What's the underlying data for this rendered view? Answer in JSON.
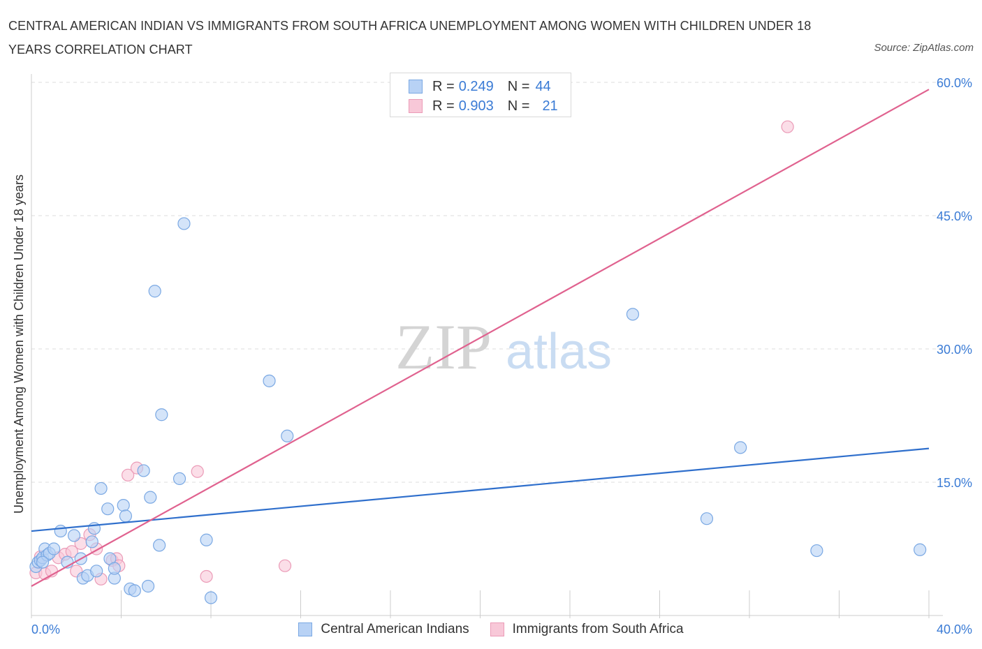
{
  "header": {
    "title": "CENTRAL AMERICAN INDIAN VS IMMIGRANTS FROM SOUTH AFRICA UNEMPLOYMENT AMONG WOMEN WITH CHILDREN UNDER 18 YEARS CORRELATION CHART",
    "source": "Source: ZipAtlas.com"
  },
  "legend": {
    "blue": {
      "r_label": "R =",
      "r_value": "0.249",
      "n_label": "N =",
      "n_value": "44"
    },
    "pink": {
      "r_label": "R =",
      "r_value": "0.903",
      "n_label": "N =",
      "n_value": "21"
    }
  },
  "watermark": {
    "zip": "ZIP",
    "atlas": "atlas"
  },
  "colors": {
    "blue_fill": "#b8d2f5",
    "blue_stroke": "#7aa8e3",
    "blue_line": "#2f6fcc",
    "pink_fill": "#f8c8d8",
    "pink_stroke": "#eb9bb7",
    "pink_line": "#e0628f",
    "tick_label": "#3a7bd5",
    "grid": "#dddddd"
  },
  "chart_data": {
    "type": "scatter",
    "title": "CENTRAL AMERICAN INDIAN VS IMMIGRANTS FROM SOUTH AFRICA UNEMPLOYMENT AMONG WOMEN WITH CHILDREN UNDER 18 YEARS CORRELATION CHART",
    "xlabel": "",
    "ylabel": "Unemployment Among Women with Children Under 18 years",
    "xlim": [
      0,
      40
    ],
    "ylim": [
      0,
      60
    ],
    "x_tick_labels": [
      "0.0%",
      "40.0%"
    ],
    "y_ticks": [
      15,
      30,
      45,
      60
    ],
    "y_tick_labels": [
      "15.0%",
      "30.0%",
      "45.0%",
      "60.0%"
    ],
    "grid": true,
    "series": [
      {
        "name": "Central American Indians",
        "color": "blue",
        "trend": {
          "x": [
            0,
            40
          ],
          "y": [
            9.5,
            18.8
          ]
        },
        "points": [
          [
            0.2,
            5.5
          ],
          [
            0.3,
            6.0
          ],
          [
            0.4,
            6.2
          ],
          [
            0.5,
            6.5
          ],
          [
            0.6,
            7.5
          ],
          [
            0.7,
            6.8
          ],
          [
            0.8,
            7.0
          ],
          [
            1.0,
            7.5
          ],
          [
            1.3,
            9.5
          ],
          [
            1.6,
            6.0
          ],
          [
            1.9,
            9.0
          ],
          [
            2.2,
            6.4
          ],
          [
            2.3,
            4.2
          ],
          [
            2.5,
            4.5
          ],
          [
            2.7,
            8.3
          ],
          [
            2.8,
            9.8
          ],
          [
            2.9,
            5.0
          ],
          [
            3.1,
            14.3
          ],
          [
            3.4,
            12.0
          ],
          [
            3.5,
            6.4
          ],
          [
            3.7,
            4.2
          ],
          [
            3.7,
            5.3
          ],
          [
            4.1,
            12.4
          ],
          [
            4.2,
            11.2
          ],
          [
            4.4,
            3.0
          ],
          [
            4.6,
            2.8
          ],
          [
            5.0,
            16.3
          ],
          [
            5.2,
            3.3
          ],
          [
            5.3,
            13.3
          ],
          [
            5.5,
            36.5
          ],
          [
            5.7,
            7.9
          ],
          [
            5.8,
            22.6
          ],
          [
            6.6,
            15.4
          ],
          [
            6.8,
            44.1
          ],
          [
            7.8,
            8.5
          ],
          [
            8.0,
            2.0
          ],
          [
            10.6,
            26.4
          ],
          [
            11.4,
            20.2
          ],
          [
            26.8,
            33.9
          ],
          [
            30.1,
            10.9
          ],
          [
            31.6,
            18.9
          ],
          [
            35.0,
            7.3
          ],
          [
            39.6,
            7.4
          ],
          [
            0.5,
            6.0
          ]
        ]
      },
      {
        "name": "Immigrants from South Africa",
        "color": "pink",
        "trend": {
          "x": [
            0,
            40
          ],
          "y": [
            3.3,
            59.2
          ]
        },
        "points": [
          [
            0.2,
            4.8
          ],
          [
            0.4,
            6.6
          ],
          [
            0.6,
            4.7
          ],
          [
            0.9,
            5.0
          ],
          [
            1.2,
            6.5
          ],
          [
            1.5,
            6.9
          ],
          [
            1.8,
            7.2
          ],
          [
            2.0,
            5.0
          ],
          [
            2.2,
            8.1
          ],
          [
            2.6,
            9.1
          ],
          [
            2.9,
            7.5
          ],
          [
            3.1,
            4.1
          ],
          [
            3.6,
            6.2
          ],
          [
            3.8,
            6.4
          ],
          [
            3.9,
            5.6
          ],
          [
            4.3,
            15.8
          ],
          [
            4.7,
            16.6
          ],
          [
            7.4,
            16.2
          ],
          [
            7.8,
            4.4
          ],
          [
            11.3,
            5.6
          ],
          [
            33.7,
            55.0
          ]
        ]
      }
    ]
  }
}
